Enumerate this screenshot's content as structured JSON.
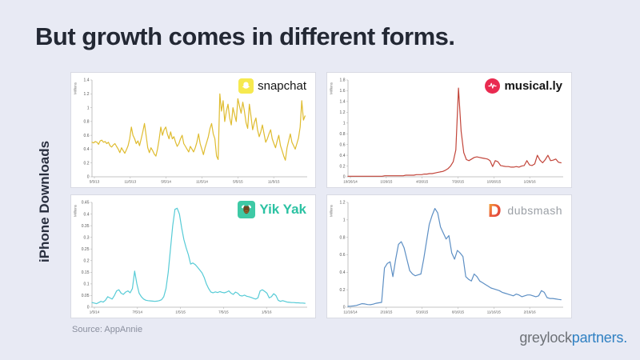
{
  "slide": {
    "title": "But growth comes in different forms.",
    "axis_group_label": "iPhone Downloads",
    "source_note": "Source: AppAnnie",
    "footer_logo": {
      "gray_part": "greylock",
      "blue_part": "partners."
    }
  },
  "colors": {
    "background": "#e8eaf4",
    "title_text": "#232834",
    "snapchat_line": "#dfbc2f",
    "musically_line": "#c2453a",
    "yikyak_line": "#56cbd6",
    "dubsmash_line": "#5d8fc4"
  },
  "chart_data": [
    {
      "type": "line",
      "brand": "snapchat",
      "line_color": "#dfbc2f",
      "ylabel": "Millions",
      "ylim": [
        0,
        1.4
      ],
      "ytick_labels": [
        "0",
        "0.2",
        "0.4",
        "0.6",
        "0.8",
        "1",
        "1.2",
        "1.4"
      ],
      "xtick_labels": [
        "5/5/13",
        "11/5/13",
        "5/5/14",
        "11/5/14",
        "5/5/15",
        "11/5/15"
      ],
      "values": [
        0.5,
        0.49,
        0.51,
        0.5,
        0.47,
        0.52,
        0.53,
        0.5,
        0.51,
        0.48,
        0.5,
        0.45,
        0.43,
        0.46,
        0.48,
        0.44,
        0.4,
        0.35,
        0.42,
        0.38,
        0.34,
        0.39,
        0.45,
        0.55,
        0.72,
        0.6,
        0.55,
        0.48,
        0.52,
        0.45,
        0.55,
        0.65,
        0.77,
        0.6,
        0.42,
        0.35,
        0.42,
        0.38,
        0.33,
        0.3,
        0.4,
        0.55,
        0.72,
        0.6,
        0.68,
        0.72,
        0.62,
        0.55,
        0.65,
        0.55,
        0.58,
        0.5,
        0.44,
        0.48,
        0.55,
        0.6,
        0.48,
        0.44,
        0.4,
        0.36,
        0.44,
        0.4,
        0.36,
        0.42,
        0.5,
        0.62,
        0.48,
        0.4,
        0.32,
        0.42,
        0.5,
        0.58,
        0.7,
        0.77,
        0.62,
        0.55,
        0.3,
        0.25,
        1.2,
        0.95,
        1.1,
        0.8,
        0.95,
        1.05,
        0.85,
        0.75,
        1.0,
        0.9,
        0.8,
        1.13,
        1.02,
        0.92,
        1.08,
        0.95,
        0.78,
        0.7,
        1.05,
        0.88,
        0.68,
        0.78,
        0.85,
        0.68,
        0.58,
        0.65,
        0.75,
        0.62,
        0.5,
        0.55,
        0.62,
        0.68,
        0.55,
        0.48,
        0.42,
        0.52,
        0.6,
        0.45,
        0.38,
        0.3,
        0.24,
        0.42,
        0.52,
        0.62,
        0.5,
        0.45,
        0.4,
        0.48,
        0.56,
        0.72,
        1.1,
        0.82,
        0.88
      ]
    },
    {
      "type": "line",
      "brand": "musical.ly",
      "line_color": "#c2453a",
      "ylabel": "Millions",
      "ylim": [
        0,
        1.8
      ],
      "ytick_labels": [
        "0",
        "0.2",
        "0.4",
        "0.6",
        "0.8",
        "1",
        "1.2",
        "1.4",
        "1.6",
        "1.8"
      ],
      "xtick_labels": [
        "10/26/14",
        "1/26/15",
        "4/26/15",
        "7/26/15",
        "10/26/15",
        "1/26/16"
      ],
      "values": [
        0.01,
        0.01,
        0.01,
        0.01,
        0.01,
        0.01,
        0.01,
        0.01,
        0.01,
        0.01,
        0.01,
        0.01,
        0.01,
        0.01,
        0.02,
        0.02,
        0.02,
        0.02,
        0.02,
        0.02,
        0.02,
        0.02,
        0.03,
        0.03,
        0.03,
        0.03,
        0.04,
        0.04,
        0.04,
        0.05,
        0.05,
        0.06,
        0.06,
        0.07,
        0.08,
        0.09,
        0.1,
        0.12,
        0.15,
        0.2,
        0.28,
        0.5,
        1.65,
        0.85,
        0.45,
        0.32,
        0.3,
        0.33,
        0.36,
        0.37,
        0.36,
        0.35,
        0.34,
        0.33,
        0.3,
        0.19,
        0.3,
        0.28,
        0.21,
        0.2,
        0.19,
        0.19,
        0.18,
        0.18,
        0.19,
        0.18,
        0.2,
        0.21,
        0.3,
        0.22,
        0.21,
        0.24,
        0.4,
        0.31,
        0.26,
        0.32,
        0.4,
        0.3,
        0.31,
        0.33,
        0.27,
        0.26
      ]
    },
    {
      "type": "line",
      "brand": "Yik Yak",
      "line_color": "#56cbd6",
      "ylabel": "Millions",
      "ylim": [
        0,
        0.45
      ],
      "ytick_labels": [
        "0",
        "0.05",
        "0.1",
        "0.15",
        "0.2",
        "0.25",
        "0.3",
        "0.35",
        "0.4",
        "0.45"
      ],
      "xtick_labels": [
        "1/5/14",
        "7/5/14",
        "1/5/15",
        "7/5/15",
        "1/5/16"
      ],
      "values": [
        0.02,
        0.018,
        0.015,
        0.02,
        0.025,
        0.022,
        0.03,
        0.045,
        0.04,
        0.035,
        0.05,
        0.07,
        0.075,
        0.06,
        0.055,
        0.065,
        0.07,
        0.062,
        0.08,
        0.155,
        0.1,
        0.06,
        0.045,
        0.035,
        0.03,
        0.028,
        0.027,
        0.026,
        0.025,
        0.026,
        0.028,
        0.032,
        0.045,
        0.08,
        0.15,
        0.25,
        0.35,
        0.42,
        0.425,
        0.4,
        0.34,
        0.29,
        0.255,
        0.225,
        0.185,
        0.19,
        0.183,
        0.172,
        0.16,
        0.148,
        0.128,
        0.1,
        0.08,
        0.065,
        0.062,
        0.066,
        0.063,
        0.067,
        0.064,
        0.062,
        0.065,
        0.07,
        0.06,
        0.055,
        0.065,
        0.06,
        0.05,
        0.048,
        0.052,
        0.047,
        0.045,
        0.042,
        0.038,
        0.035,
        0.04,
        0.07,
        0.075,
        0.068,
        0.06,
        0.04,
        0.045,
        0.058,
        0.05,
        0.03,
        0.025,
        0.028,
        0.025,
        0.022,
        0.021,
        0.02,
        0.02,
        0.019,
        0.019,
        0.018,
        0.018,
        0.017
      ]
    },
    {
      "type": "line",
      "brand": "dubsmash",
      "line_color": "#5d8fc4",
      "ylabel": "Millions",
      "ylim": [
        0,
        1.2
      ],
      "ytick_labels": [
        "0",
        "0.2",
        "0.4",
        "0.6",
        "0.8",
        "1",
        "1.2"
      ],
      "xtick_labels": [
        "11/16/14",
        "2/16/15",
        "5/16/15",
        "8/16/15",
        "11/16/15",
        "2/16/16"
      ],
      "values": [
        0.01,
        0.012,
        0.015,
        0.02,
        0.03,
        0.04,
        0.038,
        0.03,
        0.028,
        0.035,
        0.045,
        0.05,
        0.055,
        0.45,
        0.5,
        0.52,
        0.35,
        0.55,
        0.72,
        0.75,
        0.68,
        0.55,
        0.42,
        0.38,
        0.36,
        0.37,
        0.38,
        0.55,
        0.75,
        0.95,
        1.05,
        1.13,
        1.08,
        0.92,
        0.85,
        0.78,
        0.82,
        0.62,
        0.55,
        0.65,
        0.62,
        0.58,
        0.35,
        0.32,
        0.3,
        0.38,
        0.35,
        0.3,
        0.28,
        0.26,
        0.24,
        0.22,
        0.21,
        0.2,
        0.19,
        0.17,
        0.16,
        0.15,
        0.14,
        0.13,
        0.15,
        0.14,
        0.12,
        0.13,
        0.14,
        0.14,
        0.13,
        0.12,
        0.13,
        0.19,
        0.17,
        0.11,
        0.1,
        0.1,
        0.095,
        0.09,
        0.085
      ]
    }
  ]
}
